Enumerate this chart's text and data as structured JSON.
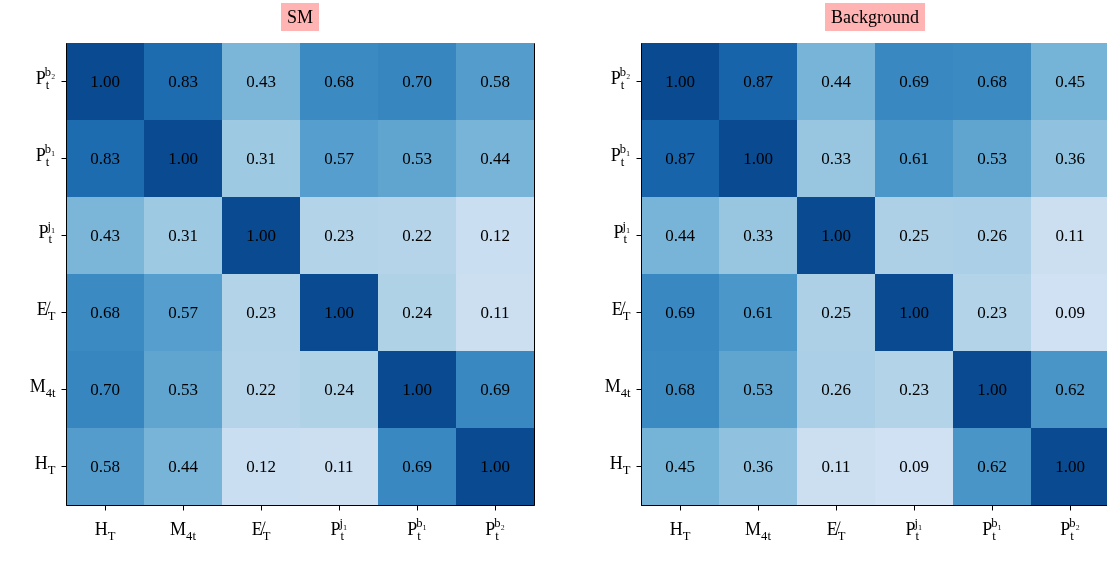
{
  "chart_data": [
    {
      "type": "heatmap",
      "title": "SM",
      "categories": [
        "H$_{T}$",
        "M$_{4t}$",
        "E̸$_{T}$",
        "P$_{t}$$^{j₁}$",
        "P$_{t}$$^{b₁}$",
        "P$_{t}$$^{b₂}$"
      ],
      "y_categories": [
        "P$_{t}$$^{b₂}$",
        "P$_{t}$$^{b₁}$",
        "P$_{t}$$^{j₁}$",
        "E̸$_{T}$",
        "M$_{4t}$",
        "H$_{T}$"
      ],
      "cells": [
        [
          1.0,
          0.83,
          0.43,
          0.68,
          0.7,
          0.58
        ],
        [
          0.83,
          1.0,
          0.31,
          0.57,
          0.53,
          0.44
        ],
        [
          0.43,
          0.31,
          1.0,
          0.23,
          0.22,
          0.12
        ],
        [
          0.68,
          0.57,
          0.23,
          1.0,
          0.24,
          0.11
        ],
        [
          0.7,
          0.53,
          0.22,
          0.24,
          1.0,
          0.69
        ],
        [
          0.58,
          0.44,
          0.12,
          0.11,
          0.69,
          1.0
        ]
      ],
      "cell_labels": [
        [
          "1.00",
          "0.83",
          "0.43",
          "0.68",
          "0.70",
          "0.58"
        ],
        [
          "0.83",
          "1.00",
          "0.31",
          "0.57",
          "0.53",
          "0.44"
        ],
        [
          "0.43",
          "0.31",
          "1.00",
          "0.23",
          "0.22",
          "0.12"
        ],
        [
          "0.68",
          "0.57",
          "0.23",
          "1.00",
          "0.24",
          "0.11"
        ],
        [
          "0.70",
          "0.53",
          "0.22",
          "0.24",
          "1.00",
          "0.69"
        ],
        [
          "0.58",
          "0.44",
          "0.12",
          "0.11",
          "0.69",
          "1.00"
        ]
      ]
    },
    {
      "type": "heatmap",
      "title": "Background",
      "categories": [
        "H$_{T}$",
        "M$_{4t}$",
        "E̸$_{T}$",
        "P$_{t}$$^{j₁}$",
        "P$_{t}$$^{b₁}$",
        "P$_{t}$$^{b₂}$"
      ],
      "y_categories": [
        "P$_{t}$$^{b₂}$",
        "P$_{t}$$^{b₁}$",
        "P$_{t}$$^{j₁}$",
        "E̸$_{T}$",
        "M$_{4t}$",
        "H$_{T}$"
      ],
      "cells": [
        [
          1.0,
          0.87,
          0.44,
          0.69,
          0.68,
          0.45
        ],
        [
          0.87,
          1.0,
          0.33,
          0.61,
          0.53,
          0.36
        ],
        [
          0.44,
          0.33,
          1.0,
          0.25,
          0.26,
          0.11
        ],
        [
          0.69,
          0.61,
          0.25,
          1.0,
          0.23,
          0.09
        ],
        [
          0.68,
          0.53,
          0.26,
          0.23,
          1.0,
          0.62
        ],
        [
          0.45,
          0.36,
          0.11,
          0.09,
          0.62,
          1.0
        ]
      ],
      "cell_labels": [
        [
          "1.00",
          "0.87",
          "0.44",
          "0.69",
          "0.68",
          "0.45"
        ],
        [
          "0.87",
          "1.00",
          "0.33",
          "0.61",
          "0.53",
          "0.36"
        ],
        [
          "0.44",
          "0.33",
          "1.00",
          "0.25",
          "0.26",
          "0.11"
        ],
        [
          "0.69",
          "0.61",
          "0.25",
          "1.00",
          "0.23",
          "0.09"
        ],
        [
          "0.68",
          "0.53",
          "0.26",
          "0.23",
          "1.00",
          "0.62"
        ],
        [
          "0.45",
          "0.36",
          "0.11",
          "0.09",
          "0.62",
          "1.00"
        ]
      ]
    }
  ]
}
